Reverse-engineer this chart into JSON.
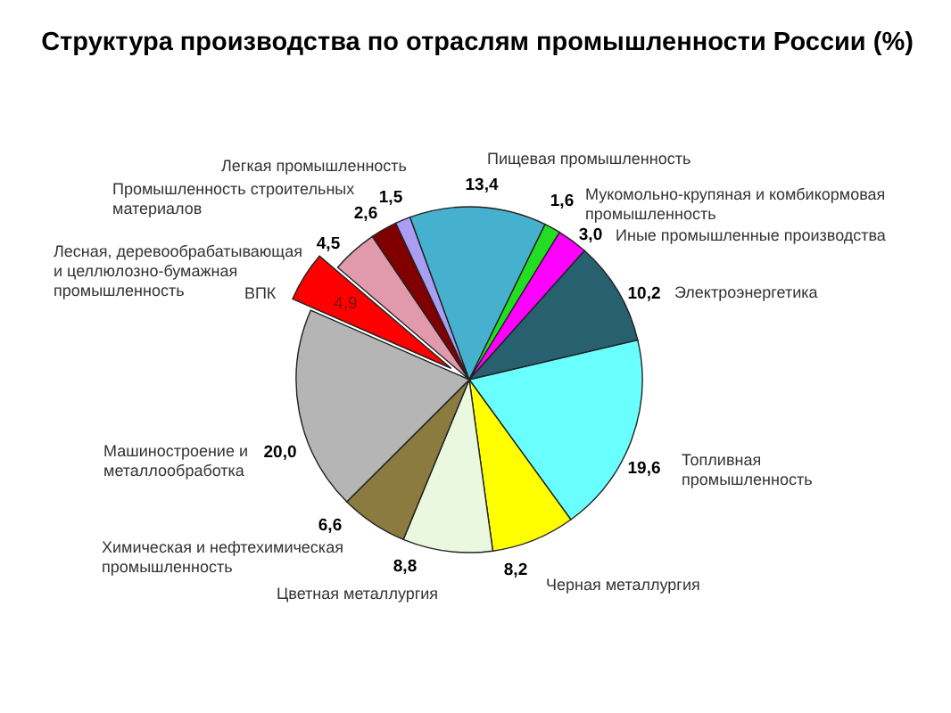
{
  "chart_data": {
    "type": "pie",
    "title": "Структура производства по отраслям промышленности России (%)",
    "categories": [
      "Пищевая промышленность",
      "Мукомольно-крупяная и комбикормовая промышленность",
      "Иные промышленные производства",
      "Электроэнергетика",
      "Топливная промышленность",
      "Черная металлургия",
      "Цветная металлургия",
      "Химическая и нефтехимическая промышленность",
      "Машиностроение и металлообработка",
      "ВПК",
      "Лесная, деревообрабатывающая и целлюлозно-бумажная промышленность",
      "Промышленность строительных материалов",
      "Легкая промышленность"
    ],
    "values": [
      13.4,
      1.6,
      3.0,
      10.2,
      19.6,
      8.2,
      8.8,
      6.6,
      20.0,
      4.9,
      4.5,
      2.6,
      1.5
    ],
    "colors": [
      "#45b1cf",
      "#22dd22",
      "#ff00ff",
      "#27606f",
      "#6affff",
      "#ffff00",
      "#eaf8e0",
      "#8b7b3f",
      "#b5b5b5",
      "#ff0000",
      "#e19aac",
      "#800000",
      "#a99ef2"
    ],
    "value_labels": [
      "13,4",
      "1,6",
      "3,0",
      "10,2",
      "19,6",
      "8,2",
      "8,8",
      "6,6",
      "20,0",
      "4,9",
      "4,5",
      "2,6",
      "1,5"
    ]
  }
}
